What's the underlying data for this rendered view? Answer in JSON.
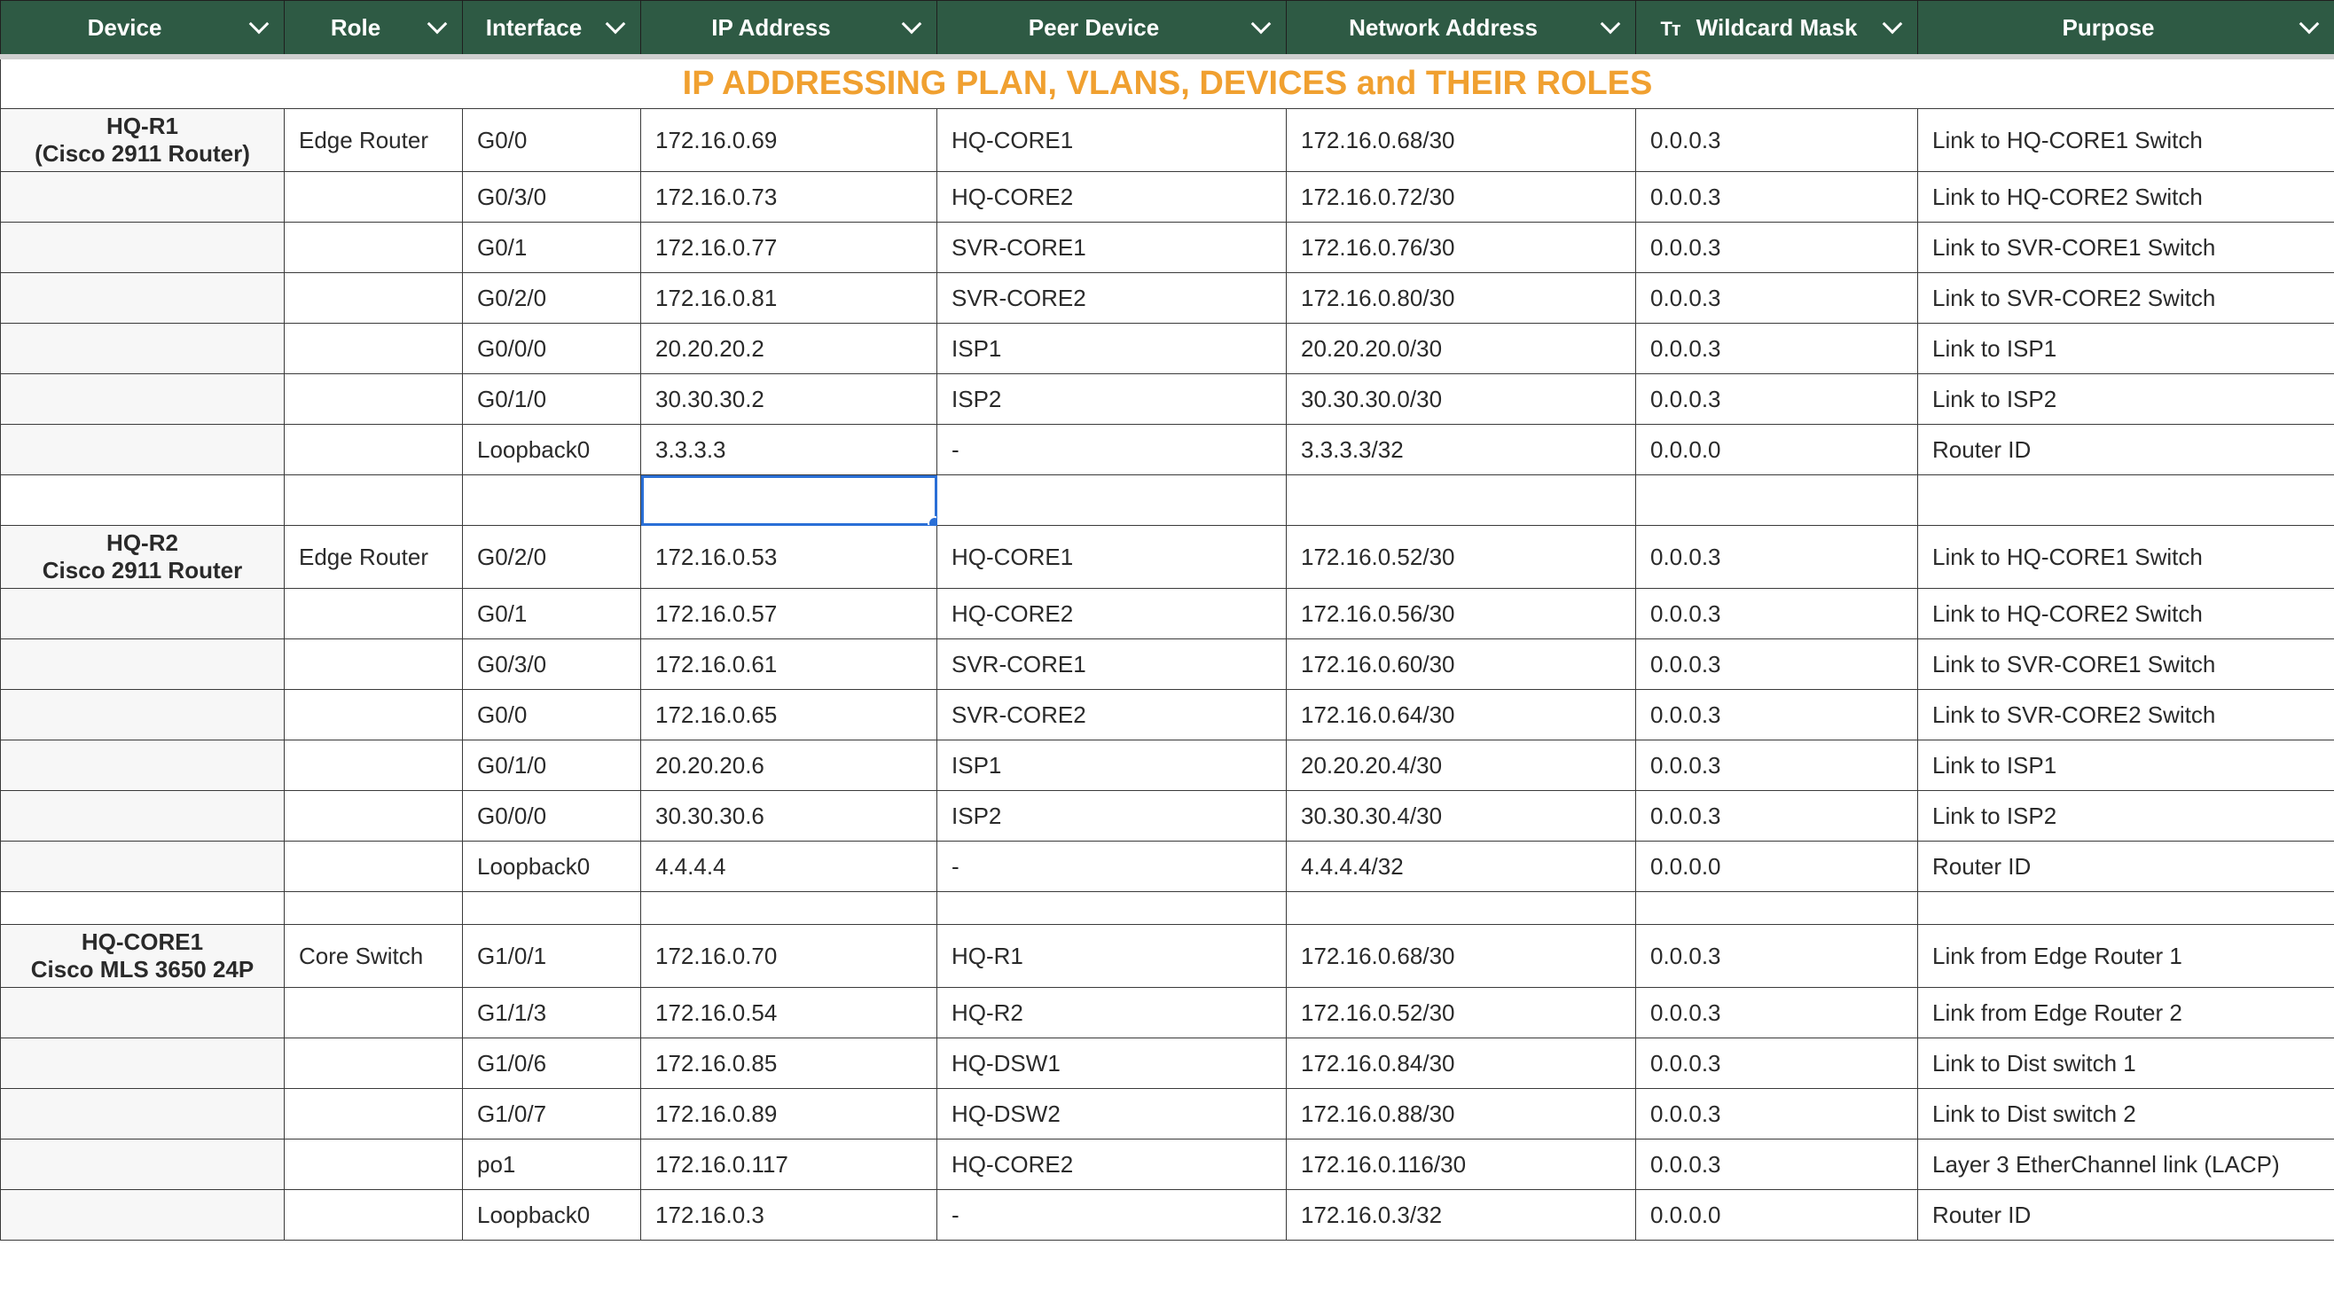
{
  "headers": [
    "Device",
    "Role",
    "Interface",
    "IP Address",
    "Peer Device",
    "Network Address",
    "Wildcard Mask",
    "Purpose"
  ],
  "wildcard_type_icon": "Tт",
  "title": "IP ADDRESSING PLAN, VLANS, DEVICES and THEIR ROLES",
  "groups": [
    {
      "device_line1": "HQ-R1",
      "device_line2": "(Cisco 2911 Router)",
      "role": "Edge Router",
      "rows": [
        [
          "G0/0",
          "172.16.0.69",
          "HQ-CORE1",
          "172.16.0.68/30",
          "0.0.0.3",
          "Link to HQ-CORE1 Switch"
        ],
        [
          "G0/3/0",
          "172.16.0.73",
          "HQ-CORE2",
          "172.16.0.72/30",
          "0.0.0.3",
          "Link to HQ-CORE2 Switch"
        ],
        [
          "G0/1",
          "172.16.0.77",
          "SVR-CORE1",
          "172.16.0.76/30",
          "0.0.0.3",
          "Link to SVR-CORE1 Switch"
        ],
        [
          "G0/2/0",
          "172.16.0.81",
          "SVR-CORE2",
          "172.16.0.80/30",
          "0.0.0.3",
          "Link to SVR-CORE2 Switch"
        ],
        [
          "G0/0/0",
          "20.20.20.2",
          "ISP1",
          "20.20.20.0/30",
          "0.0.0.3",
          "Link to ISP1"
        ],
        [
          "G0/1/0",
          "30.30.30.2",
          "ISP2",
          "30.30.30.0/30",
          "0.0.0.3",
          "Link to ISP2"
        ],
        [
          "Loopback0",
          "3.3.3.3",
          "-",
          "3.3.3.3/32",
          "0.0.0.0",
          "Router ID"
        ]
      ]
    },
    {
      "device_line1": "HQ-R2",
      "device_line2": "Cisco 2911 Router",
      "role": "Edge Router",
      "rows": [
        [
          "G0/2/0",
          "172.16.0.53",
          "HQ-CORE1",
          "172.16.0.52/30",
          "0.0.0.3",
          "Link to HQ-CORE1 Switch"
        ],
        [
          "G0/1",
          "172.16.0.57",
          "HQ-CORE2",
          "172.16.0.56/30",
          "0.0.0.3",
          "Link to HQ-CORE2 Switch"
        ],
        [
          "G0/3/0",
          "172.16.0.61",
          "SVR-CORE1",
          "172.16.0.60/30",
          "0.0.0.3",
          "Link to SVR-CORE1 Switch"
        ],
        [
          "G0/0",
          "172.16.0.65",
          "SVR-CORE2",
          "172.16.0.64/30",
          "0.0.0.3",
          "Link to SVR-CORE2 Switch"
        ],
        [
          "G0/1/0",
          "20.20.20.6",
          "ISP1",
          "20.20.20.4/30",
          "0.0.0.3",
          "Link to ISP1"
        ],
        [
          "G0/0/0",
          "30.30.30.6",
          "ISP2",
          "30.30.30.4/30",
          "0.0.0.3",
          "Link to ISP2"
        ],
        [
          "Loopback0",
          "4.4.4.4",
          "-",
          "4.4.4.4/32",
          "0.0.0.0",
          "Router ID"
        ]
      ]
    },
    {
      "device_line1": "HQ-CORE1",
      "device_line2": "Cisco MLS 3650 24P",
      "role": "Core Switch",
      "rows": [
        [
          "G1/0/1",
          "172.16.0.70",
          "HQ-R1",
          "172.16.0.68/30",
          "0.0.0.3",
          "Link from Edge Router 1"
        ],
        [
          "G1/1/3",
          "172.16.0.54",
          "HQ-R2",
          "172.16.0.52/30",
          "0.0.0.3",
          "Link from Edge Router 2"
        ],
        [
          "G1/0/6",
          "172.16.0.85",
          "HQ-DSW1",
          "172.16.0.84/30",
          "0.0.0.3",
          "Link to Dist switch 1"
        ],
        [
          "G1/0/7",
          "172.16.0.89",
          "HQ-DSW2",
          "172.16.0.88/30",
          "0.0.0.3",
          "Link to Dist switch 2"
        ],
        [
          "po1",
          "172.16.0.117",
          "HQ-CORE2",
          "172.16.0.116/30",
          "0.0.0.3",
          "Layer 3 EtherChannel link (LACP)"
        ],
        [
          "Loopback0",
          "172.16.0.3",
          "-",
          "172.16.0.3/32",
          "0.0.0.0",
          "Router ID"
        ]
      ]
    }
  ]
}
